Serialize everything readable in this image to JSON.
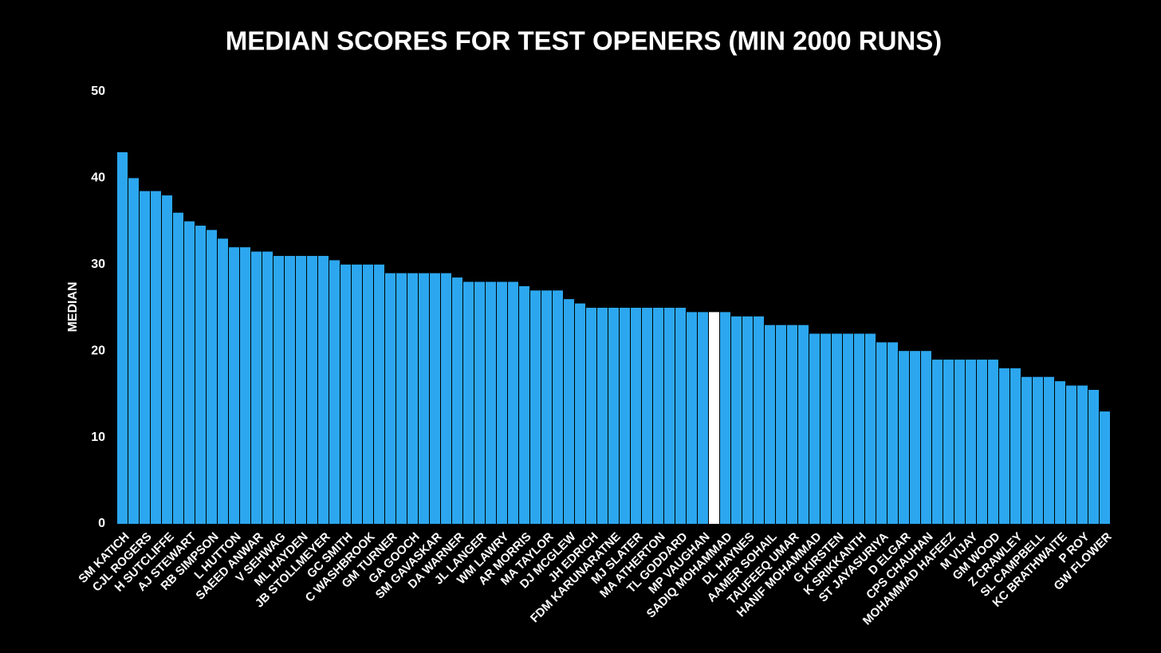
{
  "chart_data": {
    "type": "bar",
    "title": "MEDIAN SCORES FOR TEST OPENERS (MIN 2000 RUNS)",
    "ylabel": "MEDIAN",
    "categories": [
      "SM KATICH",
      null,
      "CJL ROGERS",
      null,
      "H SUTCLIFFE",
      null,
      "AJ STEWART",
      null,
      "RB SIMPSON",
      null,
      "L HUTTON",
      null,
      "SAEED ANWAR",
      null,
      "V SEHWAG",
      null,
      "ML HAYDEN",
      null,
      "JB STOLLMEYER",
      null,
      "GC SMITH",
      null,
      "C WASHBROOK",
      null,
      "GM TURNER",
      null,
      "GA GOOCH",
      null,
      "SM GAVASKAR",
      null,
      "DA WARNER",
      null,
      "JL LANGER",
      null,
      "WM LAWRY",
      null,
      "AR MORRIS",
      null,
      "MA TAYLOR",
      null,
      "DJ MCGLEW",
      null,
      "JH EDRICH",
      null,
      "FDM KARUNARATNE",
      null,
      "MJ SLATER",
      null,
      "MA ATHERTON",
      null,
      "TL GODDARD",
      null,
      "MP VAUGHAN",
      null,
      "SADIQ MOHAMMAD",
      null,
      "DL HAYNES",
      null,
      "AAMER SOHAIL",
      null,
      "TAUFEEQ UMAR",
      null,
      "HANIF MOHAMMAD",
      null,
      "G KIRSTEN",
      null,
      "K SRIKKANTH",
      null,
      "ST JAYASURIYA",
      null,
      "D ELGAR",
      null,
      "CPS CHAUHAN",
      null,
      "MOHAMMAD HAFEEZ",
      null,
      "M VIJAY",
      null,
      "GM WOOD",
      null,
      "Z CRAWLEY",
      null,
      "SL CAMPBELL",
      null,
      "KC BRATHWAITE",
      null,
      "P ROY",
      null,
      "GW FLOWER"
    ],
    "values": [
      43,
      40,
      38.5,
      38.5,
      38,
      36,
      35,
      34.5,
      34,
      33,
      32,
      32,
      31.5,
      31.5,
      31,
      31,
      31,
      31,
      31,
      30.5,
      30,
      30,
      30,
      30,
      29,
      29,
      29,
      29,
      29,
      29,
      28.5,
      28,
      28,
      28,
      28,
      28,
      27.5,
      27,
      27,
      27,
      26,
      25.5,
      25,
      25,
      25,
      25,
      25,
      25,
      25,
      25,
      25,
      24.5,
      24.5,
      24.5,
      24.5,
      24,
      24,
      24,
      23,
      23,
      23,
      23,
      22,
      22,
      22,
      22,
      22,
      22,
      21,
      21,
      20,
      20,
      20,
      19,
      19,
      19,
      19,
      19,
      19,
      18,
      18,
      17,
      17,
      17,
      16.5,
      16,
      16,
      15.5,
      13
    ],
    "colors": [
      "#2ca7ef",
      "#2ca7ef",
      "#2ca7ef",
      "#2ca7ef",
      "#2ca7ef",
      "#2ca7ef",
      "#2ca7ef",
      "#2ca7ef",
      "#2ca7ef",
      "#2ca7ef",
      "#2ca7ef",
      "#2ca7ef",
      "#2ca7ef",
      "#2ca7ef",
      "#2ca7ef",
      "#2ca7ef",
      "#2ca7ef",
      "#2ca7ef",
      "#2ca7ef",
      "#2ca7ef",
      "#2ca7ef",
      "#2ca7ef",
      "#2ca7ef",
      "#2ca7ef",
      "#2ca7ef",
      "#2ca7ef",
      "#2ca7ef",
      "#2ca7ef",
      "#2ca7ef",
      "#2ca7ef",
      "#2ca7ef",
      "#2ca7ef",
      "#2ca7ef",
      "#2ca7ef",
      "#2ca7ef",
      "#2ca7ef",
      "#2ca7ef",
      "#2ca7ef",
      "#2ca7ef",
      "#2ca7ef",
      "#2ca7ef",
      "#2ca7ef",
      "#2ca7ef",
      "#2ca7ef",
      "#2ca7ef",
      "#2ca7ef",
      "#2ca7ef",
      "#2ca7ef",
      "#2ca7ef",
      "#2ca7ef",
      "#2ca7ef",
      "#2ca7ef",
      "#2ca7ef",
      "#ffffff",
      "#2ca7ef",
      "#2ca7ef",
      "#2ca7ef",
      "#2ca7ef",
      "#2ca7ef",
      "#2ca7ef",
      "#2ca7ef",
      "#2ca7ef",
      "#2ca7ef",
      "#2ca7ef",
      "#2ca7ef",
      "#2ca7ef",
      "#2ca7ef",
      "#2ca7ef",
      "#2ca7ef",
      "#2ca7ef",
      "#2ca7ef",
      "#2ca7ef",
      "#2ca7ef",
      "#2ca7ef",
      "#2ca7ef",
      "#2ca7ef",
      "#2ca7ef",
      "#2ca7ef",
      "#2ca7ef",
      "#2ca7ef",
      "#2ca7ef",
      "#2ca7ef",
      "#2ca7ef",
      "#2ca7ef",
      "#2ca7ef",
      "#2ca7ef",
      "#2ca7ef",
      "#2ca7ef",
      "#2ca7ef"
    ],
    "ylim": [
      0,
      50
    ],
    "yticks": [
      0,
      10,
      20,
      30,
      40,
      50
    ],
    "grid": false
  }
}
